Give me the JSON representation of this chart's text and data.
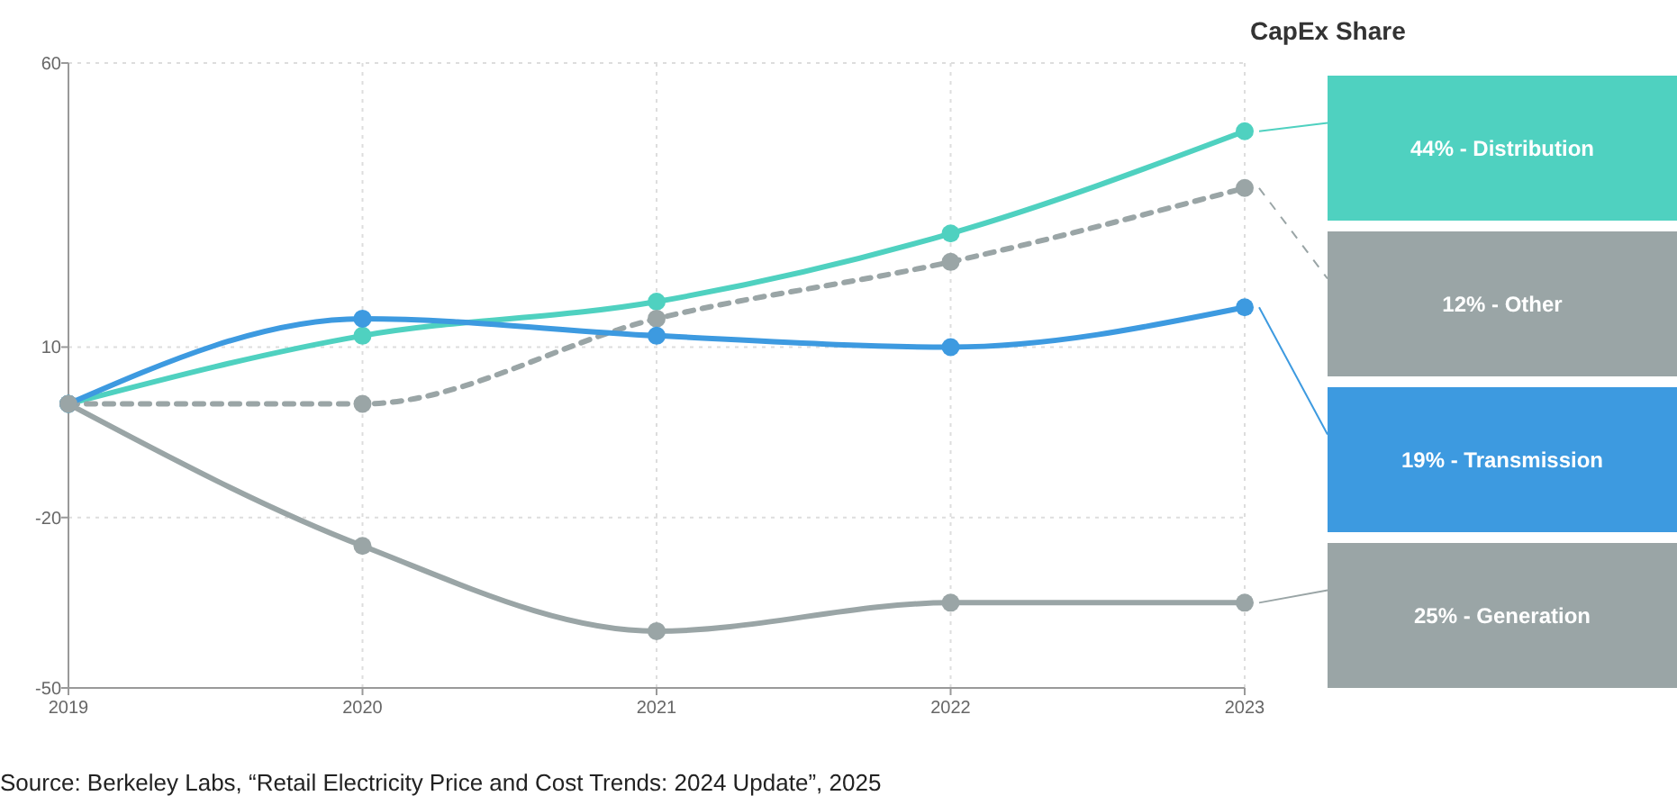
{
  "chart_data": {
    "type": "line",
    "x": [
      2019,
      2020,
      2021,
      2022,
      2023
    ],
    "xlim": [
      2019,
      2023
    ],
    "xticks": [
      2019,
      2020,
      2021,
      2022,
      2023
    ],
    "ylim": [
      -50,
      60
    ],
    "yticks": [
      -50,
      -20,
      10,
      60
    ],
    "grid": true,
    "marker": "circle",
    "legend": "right",
    "legend_title": "CapEx Share",
    "series": [
      {
        "name": "44% - Distribution",
        "color": "#4fd1c0",
        "values": [
          0,
          12,
          18,
          30,
          48
        ]
      },
      {
        "name": "12% - Other",
        "color": "#9aa5a6",
        "line_style": "dashed",
        "values": [
          0,
          0,
          15,
          25,
          38
        ]
      },
      {
        "name": "19% - Transmission",
        "color": "#3d9ae0",
        "values": [
          0,
          15,
          12,
          10,
          17
        ]
      },
      {
        "name": "25% - Generation",
        "color": "#9aa5a6",
        "values": [
          0,
          -25,
          -40,
          -35,
          -35
        ]
      }
    ],
    "annotations": [
      "Source:  Berkeley Labs, “Retail Electricity Price and Cost Trends: 2024 Update”, 2025"
    ]
  }
}
